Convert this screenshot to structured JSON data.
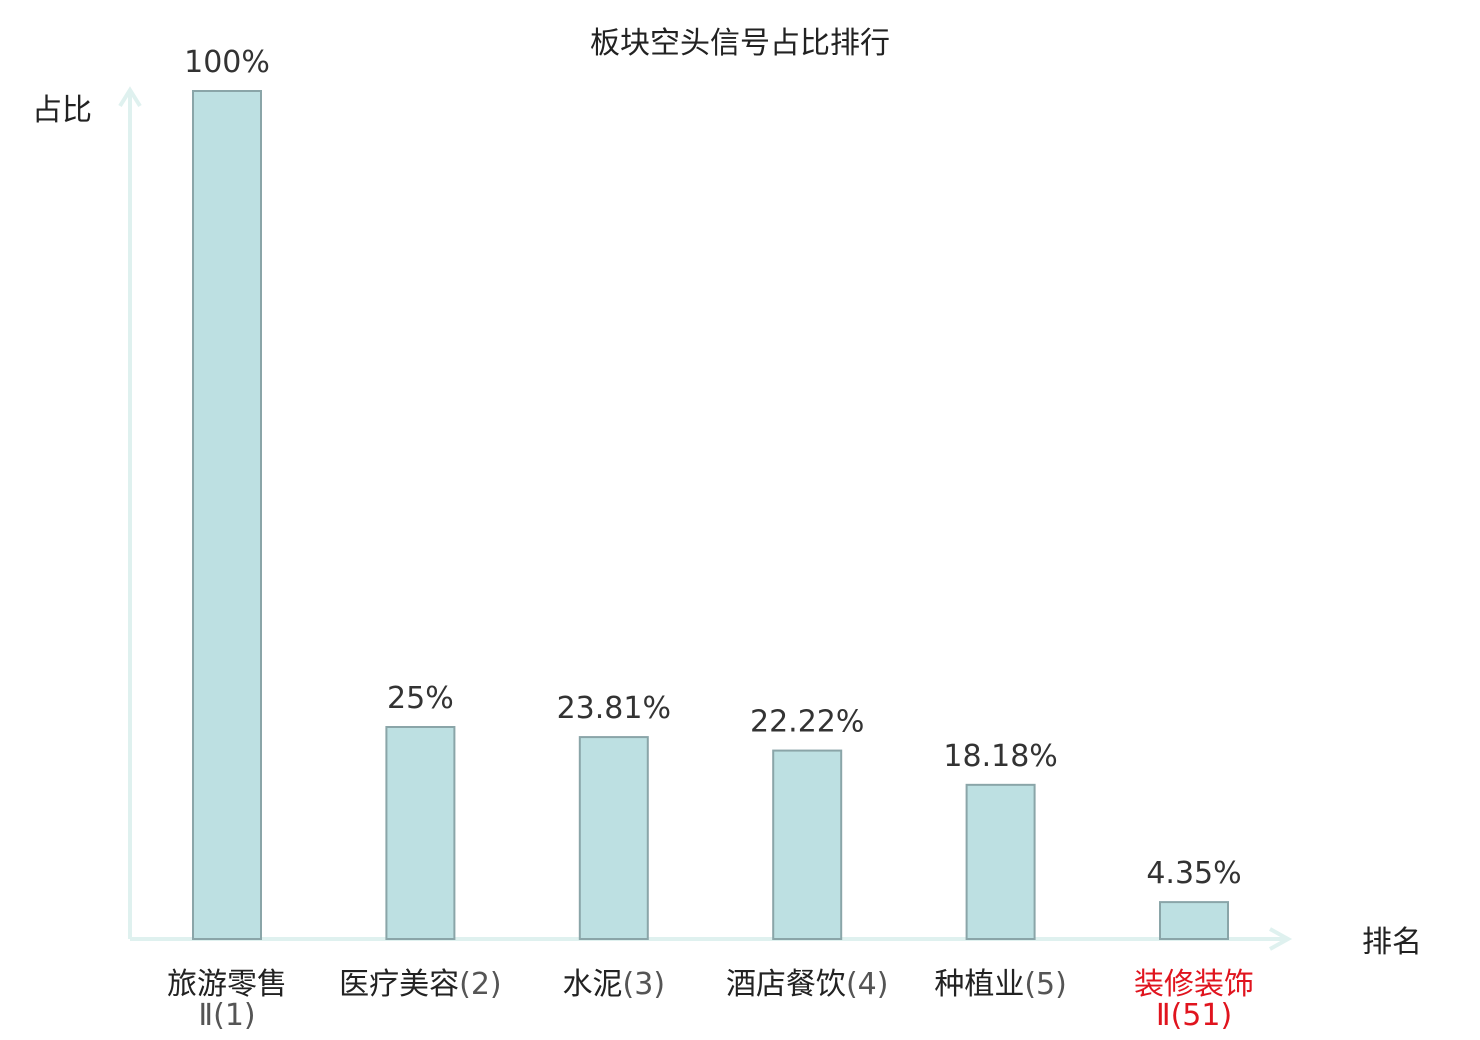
{
  "chart_data": {
    "type": "bar",
    "title": "板块空头信号占比排行",
    "ylabel": "占比",
    "xlabel": "排名",
    "ylim": [
      0,
      100
    ],
    "grid": false,
    "categories": [
      {
        "name": "旅游零售",
        "rank": "Ⅱ(1)",
        "highlight": false
      },
      {
        "name": "医疗美容",
        "rank": "(2)",
        "highlight": false
      },
      {
        "name": "水泥",
        "rank": "(3)",
        "highlight": false
      },
      {
        "name": "酒店餐饮",
        "rank": "(4)",
        "highlight": false
      },
      {
        "name": "种植业",
        "rank": "(5)",
        "highlight": false
      },
      {
        "name": "装修装饰",
        "rank": "Ⅱ(51)",
        "highlight": true
      }
    ],
    "values": [
      100,
      25,
      23.81,
      22.22,
      18.18,
      4.35
    ],
    "value_labels": [
      "100%",
      "25%",
      "23.81%",
      "22.22%",
      "18.18%",
      "4.35%"
    ]
  },
  "colors": {
    "bar_fill": "#bde0e2",
    "bar_stroke": "#8aa5a8",
    "axis": "#dff1ef",
    "text": "#222222",
    "value_text": "#333333",
    "rank_text": "#555555",
    "highlight": "#e0141e"
  }
}
